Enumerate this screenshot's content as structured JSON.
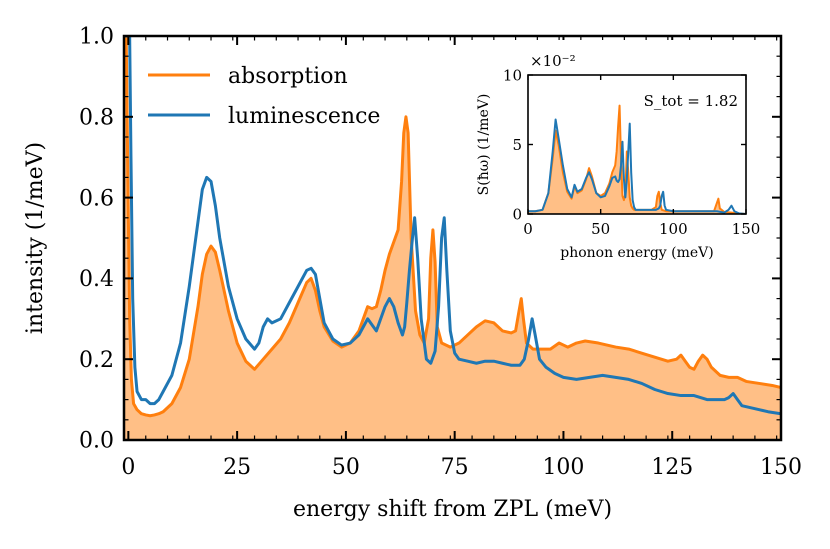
{
  "chart_data": [
    {
      "type": "line",
      "title": "",
      "xlabel": "energy shift from ZPL (meV)",
      "ylabel": "intensity (1/meV)",
      "xlim": [
        -1,
        150
      ],
      "ylim": [
        0,
        1.0
      ],
      "xticks": [
        0,
        25,
        50,
        75,
        100,
        125,
        150
      ],
      "yticks": [
        0.0,
        0.2,
        0.4,
        0.6,
        0.8,
        1.0
      ],
      "xtick_labels": [
        "0",
        "25",
        "50",
        "75",
        "100",
        "125",
        "150"
      ],
      "ytick_labels": [
        "0.0",
        "0.2",
        "0.4",
        "0.6",
        "0.8",
        "1.0"
      ],
      "legend": {
        "placement": "top-left",
        "entries": [
          "absorption",
          "luminescence"
        ]
      },
      "series": [
        {
          "name": "absorption",
          "color": "#ff7f0e",
          "fill": "#ffbf86",
          "filled": true,
          "x": [
            -1,
            -0.5,
            0,
            0.3,
            0.7,
            1.2,
            2,
            3,
            4,
            5,
            6,
            7,
            8,
            10,
            12,
            14,
            16,
            17,
            18,
            19,
            20,
            21,
            23,
            25,
            27,
            29,
            31,
            33,
            35,
            37,
            39,
            41,
            42,
            43,
            44,
            45,
            47,
            49,
            51,
            53,
            54,
            55,
            56,
            57,
            58,
            59,
            60,
            61,
            62,
            62.8,
            63.3,
            63.8,
            64.3,
            65,
            66,
            67,
            68,
            69,
            69.5,
            70,
            70.5,
            71,
            72,
            74,
            76,
            78,
            80,
            82,
            84,
            86,
            88,
            89,
            89.8,
            90.3,
            90.8,
            91.5,
            93,
            95,
            97,
            99,
            100,
            101,
            103,
            105,
            108,
            112,
            115,
            118,
            121,
            124,
            126,
            127,
            128,
            129,
            130,
            131,
            132,
            133,
            134,
            136,
            138,
            140,
            142,
            145,
            148,
            150
          ],
          "y": [
            1.0,
            1.0,
            0.55,
            0.3,
            0.15,
            0.09,
            0.075,
            0.065,
            0.062,
            0.06,
            0.062,
            0.065,
            0.07,
            0.09,
            0.13,
            0.2,
            0.33,
            0.41,
            0.46,
            0.48,
            0.465,
            0.42,
            0.32,
            0.24,
            0.195,
            0.175,
            0.2,
            0.225,
            0.25,
            0.29,
            0.34,
            0.39,
            0.4,
            0.37,
            0.32,
            0.28,
            0.245,
            0.23,
            0.24,
            0.27,
            0.3,
            0.33,
            0.325,
            0.33,
            0.37,
            0.42,
            0.46,
            0.49,
            0.52,
            0.64,
            0.76,
            0.8,
            0.76,
            0.5,
            0.32,
            0.26,
            0.24,
            0.3,
            0.45,
            0.52,
            0.44,
            0.28,
            0.24,
            0.23,
            0.24,
            0.26,
            0.28,
            0.295,
            0.29,
            0.27,
            0.265,
            0.27,
            0.32,
            0.35,
            0.3,
            0.24,
            0.225,
            0.225,
            0.225,
            0.24,
            0.235,
            0.23,
            0.24,
            0.245,
            0.24,
            0.23,
            0.225,
            0.215,
            0.205,
            0.195,
            0.2,
            0.21,
            0.195,
            0.18,
            0.175,
            0.195,
            0.21,
            0.2,
            0.18,
            0.16,
            0.155,
            0.155,
            0.145,
            0.14,
            0.135,
            0.13
          ]
        },
        {
          "name": "luminescence",
          "color": "#1f77b4",
          "filled": false,
          "x": [
            -1,
            -0.3,
            0,
            0.3,
            0.6,
            1,
            1.5,
            2,
            3,
            4,
            5,
            6,
            7,
            8,
            10,
            12,
            14,
            16,
            17,
            18,
            19,
            20,
            21,
            23,
            25,
            27,
            29,
            30,
            31,
            32,
            33,
            35,
            37,
            39,
            41,
            42,
            43,
            44,
            45,
            47,
            49,
            51,
            53,
            54,
            55,
            56,
            57,
            58,
            59,
            60,
            61,
            62,
            63,
            63.5,
            64,
            64.6,
            65.3,
            65.8,
            66.5,
            67.3,
            68.5,
            69.5,
            70.5,
            71.3,
            72,
            72.6,
            73.2,
            74,
            75,
            76,
            78,
            80,
            82,
            84,
            86,
            88,
            90,
            91,
            92,
            92.8,
            93.5,
            94.5,
            96,
            98,
            100,
            103,
            106,
            109,
            112,
            115,
            118,
            121,
            124,
            127,
            130,
            133,
            135,
            137,
            138,
            139,
            140,
            141,
            143,
            145,
            147,
            150
          ],
          "y": [
            1.0,
            1.0,
            1.0,
            1.0,
            0.7,
            0.35,
            0.18,
            0.12,
            0.1,
            0.1,
            0.09,
            0.09,
            0.1,
            0.12,
            0.16,
            0.24,
            0.38,
            0.54,
            0.62,
            0.65,
            0.64,
            0.58,
            0.5,
            0.38,
            0.3,
            0.25,
            0.225,
            0.24,
            0.28,
            0.3,
            0.29,
            0.3,
            0.34,
            0.38,
            0.42,
            0.425,
            0.41,
            0.35,
            0.29,
            0.25,
            0.235,
            0.24,
            0.26,
            0.28,
            0.3,
            0.285,
            0.27,
            0.3,
            0.33,
            0.35,
            0.33,
            0.29,
            0.26,
            0.28,
            0.34,
            0.42,
            0.5,
            0.55,
            0.45,
            0.3,
            0.2,
            0.19,
            0.22,
            0.33,
            0.5,
            0.55,
            0.42,
            0.27,
            0.215,
            0.2,
            0.195,
            0.19,
            0.195,
            0.195,
            0.19,
            0.185,
            0.185,
            0.2,
            0.25,
            0.3,
            0.26,
            0.2,
            0.18,
            0.165,
            0.155,
            0.15,
            0.155,
            0.16,
            0.155,
            0.15,
            0.14,
            0.125,
            0.115,
            0.11,
            0.11,
            0.1,
            0.1,
            0.1,
            0.105,
            0.115,
            0.1,
            0.085,
            0.08,
            0.075,
            0.07,
            0.065
          ]
        }
      ]
    },
    {
      "type": "line",
      "title": "",
      "xlabel": "phonon energy (meV)",
      "ylabel": "S(ħω) (1/meV)",
      "offset_label": "×10⁻²",
      "annotation": "S_tot = 1.82",
      "xlim": [
        0,
        150
      ],
      "ylim": [
        0,
        10
      ],
      "xticks": [
        0,
        50,
        100,
        150
      ],
      "yticks": [
        0,
        5,
        10
      ],
      "xtick_labels": [
        "0",
        "50",
        "100",
        "150"
      ],
      "ytick_labels": [
        "0",
        "5",
        "10"
      ],
      "series": [
        {
          "name": "absorption",
          "color": "#ff7f0e",
          "fill": "#ffbf86",
          "filled": true,
          "x": [
            0,
            5,
            10,
            14,
            17,
            19,
            21,
            24,
            27,
            30,
            32,
            34,
            37,
            40,
            42,
            44,
            47,
            50,
            53,
            56,
            58,
            60,
            61,
            62,
            63,
            64,
            65,
            66,
            67,
            68,
            69,
            70,
            71,
            72,
            73,
            74,
            76,
            80,
            85,
            88,
            89,
            90,
            91,
            92,
            95,
            100,
            110,
            120,
            128,
            130,
            131,
            132,
            135,
            140,
            145,
            150
          ],
          "y": [
            0.2,
            0.2,
            0.3,
            1.5,
            4,
            6,
            5,
            3,
            1.6,
            1.1,
            2,
            1.5,
            1.7,
            2.5,
            3.3,
            2.7,
            1.5,
            1.3,
            1.5,
            2.2,
            3,
            3.5,
            4.5,
            6.3,
            7.8,
            4,
            1.3,
            1,
            1.5,
            4.5,
            3,
            1.2,
            0.6,
            0.4,
            0.3,
            0.3,
            0.3,
            0.3,
            0.3,
            0.5,
            1.3,
            1.6,
            0.8,
            0.3,
            0.2,
            0.2,
            0.2,
            0.2,
            0.2,
            0.8,
            1.1,
            0.4,
            0.15,
            0.1,
            0.05,
            0
          ]
        },
        {
          "name": "luminescence",
          "color": "#1f77b4",
          "filled": false,
          "x": [
            0,
            5,
            10,
            14,
            17,
            19,
            21,
            24,
            27,
            30,
            32,
            34,
            37,
            40,
            42,
            44,
            47,
            50,
            53,
            56,
            58,
            60,
            61,
            62,
            63,
            64,
            65,
            66,
            67,
            68,
            69,
            70,
            71,
            72,
            73,
            74,
            76,
            80,
            85,
            88,
            90,
            91,
            92,
            93,
            94,
            95,
            100,
            110,
            120,
            130,
            135,
            138,
            140,
            142,
            145,
            150
          ],
          "y": [
            0.2,
            0.2,
            0.3,
            1.5,
            4.5,
            6.8,
            5.5,
            3.5,
            1.8,
            1.2,
            2.1,
            1.6,
            1.8,
            2.6,
            3,
            2.5,
            1.5,
            1.2,
            1.3,
            2,
            2.6,
            2.7,
            2.4,
            2.3,
            2.5,
            3.5,
            5.2,
            2.5,
            1.2,
            2.5,
            4.5,
            6.5,
            3,
            1,
            0.5,
            0.3,
            0.3,
            0.3,
            0.3,
            0.3,
            0.4,
            0.6,
            1.3,
            1.6,
            0.6,
            0.3,
            0.2,
            0.2,
            0.2,
            0.2,
            0.1,
            0.3,
            0.6,
            0.2,
            0.05,
            0
          ]
        }
      ]
    }
  ]
}
